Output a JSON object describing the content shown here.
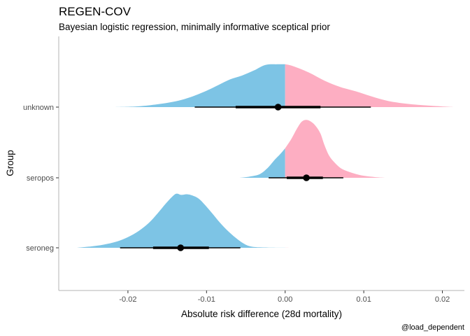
{
  "chart_data": {
    "type": "halfeye-density",
    "title": "REGEN-COV",
    "subtitle": "Bayesian logistic regression, minimally informative sceptical prior",
    "xlabel": "Absolute risk difference (28d mortality)",
    "ylabel": "Group",
    "caption": "@load_dependent",
    "xlim": [
      -0.0288,
      0.0228
    ],
    "xticks": [
      -0.02,
      -0.01,
      0.0,
      0.01,
      0.02
    ],
    "xtick_labels": [
      "-0.02",
      "-0.01",
      "0.00",
      "0.01",
      "0.02"
    ],
    "fill_negative": "#7DC4E5",
    "fill_positive": "#FDAEC2",
    "interval_color": "#000000",
    "groups": [
      {
        "name": "seroneg",
        "median": -0.0133,
        "interval_66": [
          -0.0168,
          -0.0097
        ],
        "interval_95": [
          -0.021,
          -0.0057
        ],
        "density": [
          [
            -0.0265,
            0.0
          ],
          [
            -0.0248,
            0.02
          ],
          [
            -0.0231,
            0.05
          ],
          [
            -0.0214,
            0.1
          ],
          [
            -0.02,
            0.17
          ],
          [
            -0.0186,
            0.27
          ],
          [
            -0.0173,
            0.4
          ],
          [
            -0.0162,
            0.55
          ],
          [
            -0.0152,
            0.7
          ],
          [
            -0.0143,
            0.82
          ],
          [
            -0.0138,
            0.86
          ],
          [
            -0.0132,
            0.84
          ],
          [
            -0.0125,
            0.85
          ],
          [
            -0.0118,
            0.83
          ],
          [
            -0.011,
            0.78
          ],
          [
            -0.0102,
            0.68
          ],
          [
            -0.0093,
            0.55
          ],
          [
            -0.0083,
            0.4
          ],
          [
            -0.0073,
            0.27
          ],
          [
            -0.0063,
            0.16
          ],
          [
            -0.0053,
            0.07
          ],
          [
            -0.0043,
            0.02
          ],
          [
            -0.0025,
            0.005
          ],
          [
            0.001,
            0.0
          ]
        ]
      },
      {
        "name": "seropos",
        "median": 0.0027,
        "interval_66": [
          0.0002,
          0.0048
        ],
        "interval_95": [
          -0.0021,
          0.0074
        ],
        "density": [
          [
            -0.0058,
            0.0
          ],
          [
            -0.0045,
            0.02
          ],
          [
            -0.0032,
            0.06
          ],
          [
            -0.0022,
            0.16
          ],
          [
            -0.0013,
            0.29
          ],
          [
            -0.0006,
            0.38
          ],
          [
            0.0,
            0.47
          ],
          [
            0.0008,
            0.62
          ],
          [
            0.0015,
            0.78
          ],
          [
            0.0021,
            0.89
          ],
          [
            0.0027,
            0.92
          ],
          [
            0.0033,
            0.89
          ],
          [
            0.0039,
            0.82
          ],
          [
            0.0045,
            0.7
          ],
          [
            0.005,
            0.52
          ],
          [
            0.0056,
            0.35
          ],
          [
            0.0063,
            0.24
          ],
          [
            0.0071,
            0.15
          ],
          [
            0.008,
            0.1
          ],
          [
            0.009,
            0.06
          ],
          [
            0.0101,
            0.03
          ],
          [
            0.0115,
            0.01
          ],
          [
            0.0128,
            0.0
          ]
        ]
      },
      {
        "name": "unknown",
        "median": -0.0009,
        "interval_66": [
          -0.0063,
          0.0045
        ],
        "interval_95": [
          -0.0115,
          0.0109
        ],
        "density": [
          [
            -0.022,
            0.0
          ],
          [
            -0.019,
            0.01
          ],
          [
            -0.0165,
            0.04
          ],
          [
            -0.014,
            0.09
          ],
          [
            -0.012,
            0.16
          ],
          [
            -0.01,
            0.26
          ],
          [
            -0.0085,
            0.35
          ],
          [
            -0.007,
            0.44
          ],
          [
            -0.0055,
            0.5
          ],
          [
            -0.004,
            0.58
          ],
          [
            -0.0025,
            0.67
          ],
          [
            -0.001,
            0.68
          ],
          [
            0.0,
            0.68
          ],
          [
            0.001,
            0.65
          ],
          [
            0.003,
            0.55
          ],
          [
            0.005,
            0.42
          ],
          [
            0.007,
            0.32
          ],
          [
            0.009,
            0.25
          ],
          [
            0.011,
            0.17
          ],
          [
            0.013,
            0.1
          ],
          [
            0.015,
            0.06
          ],
          [
            0.0175,
            0.03
          ],
          [
            0.02,
            0.01
          ],
          [
            0.0215,
            0.0
          ]
        ]
      }
    ]
  }
}
